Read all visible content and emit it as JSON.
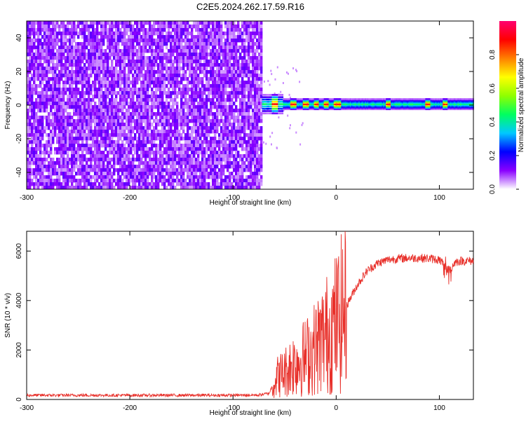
{
  "title": "C2E5.2024.262.17.59.R16",
  "chart_data": [
    {
      "type": "heatmap",
      "xlabel": "Height of straight line (km)",
      "ylabel": "Frequency (Hz)",
      "xlim": [
        -300,
        133
      ],
      "ylim": [
        -50,
        50
      ],
      "x_ticks": [
        -300,
        -200,
        -100,
        0,
        100
      ],
      "y_ticks": [
        -40,
        -20,
        0,
        20,
        40
      ],
      "colorbar": {
        "label": "Normalized spectral amplitude",
        "range": [
          0,
          1
        ],
        "ticks": [
          0.0,
          0.2,
          0.4,
          0.6,
          0.8
        ],
        "tick_labels": [
          "0.0",
          "0.2",
          "0.4",
          "0.6",
          "0.8"
        ],
        "colormap": [
          "#ffffff",
          "#8a00ff",
          "#0000ff",
          "#00c8ff",
          "#00ff60",
          "#90ff00",
          "#ffff00",
          "#ff8000",
          "#ff0000",
          "#ff0070"
        ]
      },
      "noise_region_x": [
        -300,
        -72
      ],
      "signal_band": {
        "x_start": -72,
        "x_end": 133,
        "center_freq": 0.5,
        "half_width": 3,
        "peak_x": [
          -60,
          -42,
          -30,
          -20,
          -10,
          0,
          2,
          50,
          88,
          105
        ]
      },
      "grid": false
    },
    {
      "type": "line",
      "xlabel": "Height of straight line (km)",
      "ylabel": "SNR (10 * v/v)",
      "xlim": [
        -300,
        133
      ],
      "ylim": [
        0,
        6800
      ],
      "x_ticks": [
        -300,
        -200,
        -100,
        0,
        100
      ],
      "y_ticks": [
        0,
        2000,
        4000,
        6000
      ],
      "series": [
        {
          "color": "#e8302a",
          "x": [
            -300,
            -200,
            -100,
            -75,
            -65,
            -58,
            -50,
            -40,
            -30,
            -20,
            -10,
            0,
            10,
            20,
            30,
            40,
            50,
            60,
            70,
            80,
            90,
            100,
            105,
            110,
            115,
            120,
            133
          ],
          "y": [
            170,
            170,
            170,
            180,
            250,
            900,
            1100,
            1500,
            1700,
            2100,
            2600,
            3100,
            3800,
            4600,
            5200,
            5500,
            5650,
            5700,
            5720,
            5720,
            5700,
            5650,
            5400,
            5200,
            5550,
            5600,
            5600
          ]
        }
      ],
      "grid": false
    }
  ]
}
